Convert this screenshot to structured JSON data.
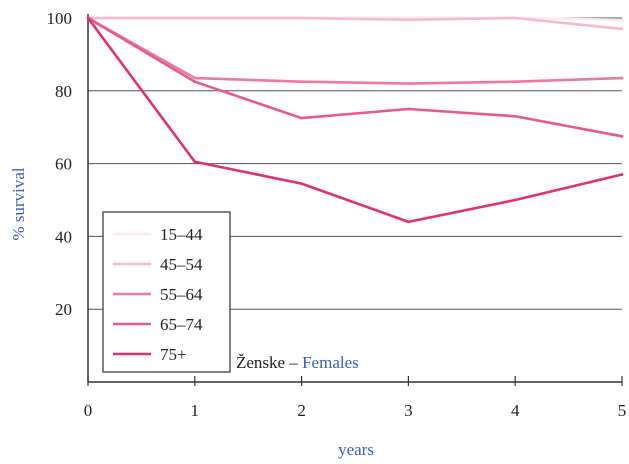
{
  "chart_data": {
    "type": "line",
    "x": [
      0,
      1,
      2,
      3,
      4,
      5
    ],
    "xlabel": "years",
    "ylabel": "% survival",
    "ylim": [
      0,
      100
    ],
    "xlim": [
      0,
      5
    ],
    "xticks": [
      "0",
      "1",
      "2",
      "3",
      "4",
      "5"
    ],
    "yticks": [
      "20",
      "40",
      "60",
      "80",
      "100"
    ],
    "grid": "horizontal",
    "legend_position": "lower-left",
    "annotation": {
      "prefix": "Ženske – ",
      "suffix": "Females"
    },
    "series": [
      {
        "name": "15–44",
        "color": "#fde8ee",
        "values": [
          100,
          100,
          100,
          100,
          100,
          99.5
        ]
      },
      {
        "name": "45–54",
        "color": "#f9b8cc",
        "values": [
          100,
          100,
          100,
          99.5,
          100,
          97
        ]
      },
      {
        "name": "55–64",
        "color": "#ee7aa2",
        "values": [
          100,
          83.5,
          82.5,
          82,
          82.5,
          83.5
        ]
      },
      {
        "name": "65–74",
        "color": "#e85a8a",
        "values": [
          100,
          82.5,
          72.5,
          75,
          73,
          67.5
        ]
      },
      {
        "name": "75+",
        "color": "#e03070",
        "values": [
          100,
          60.5,
          54.5,
          44,
          50,
          57
        ]
      }
    ],
    "colors": {
      "axis": "#333333",
      "grid": "#555555",
      "text": "#222222",
      "label": "#3a5bc7"
    }
  }
}
